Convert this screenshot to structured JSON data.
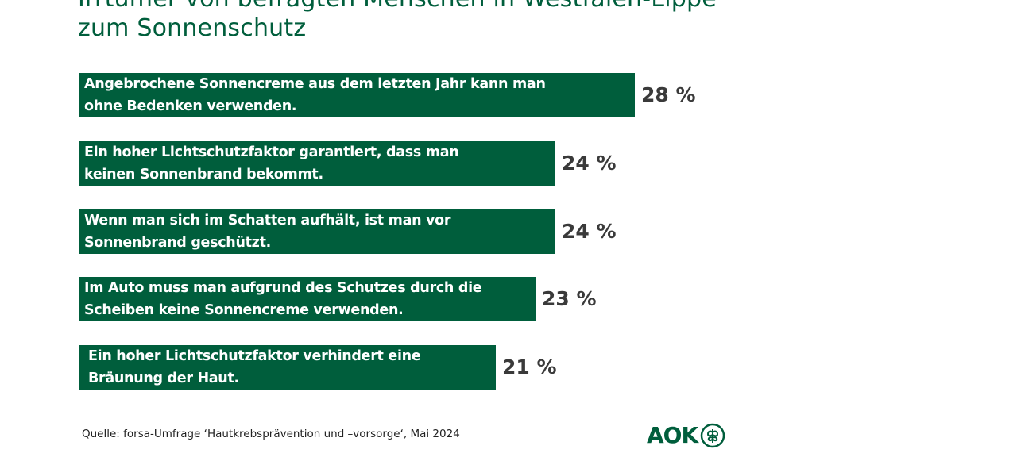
{
  "chart_data": {
    "type": "bar",
    "orientation": "horizontal",
    "title": "Irrtümer von befragten Menschen in Westfalen-Lippe zum Sonnenschutz",
    "categories": [
      "Angebrochene Sonnencreme aus dem letzten Jahr kann man ohne Bedenken verwenden.",
      "Ein hoher Lichtschutzfaktor garantiert, dass man keinen Sonnenbrand bekommt.",
      "Wenn man sich im Schatten aufhält, ist man vor Sonnenbrand geschützt.",
      "Im Auto muss man aufgrund des Schutzes durch die Scheiben keine Sonnencreme verwenden.",
      "Ein hoher Lichtschutzfaktor verhindert eine Bräunung der Haut."
    ],
    "label_lines": [
      [
        "Angebrochene Sonnencreme aus dem letzten Jahr kann man",
        "ohne Bedenken verwenden."
      ],
      [
        "Ein hoher Lichtschutzfaktor garantiert, dass man",
        "keinen Sonnenbrand bekommt."
      ],
      [
        "Wenn man sich im Schatten aufhält, ist man vor",
        "Sonnenbrand geschützt."
      ],
      [
        "Im Auto muss man aufgrund des Schutzes durch die",
        "Scheiben keine Sonnencreme verwenden."
      ],
      [
        "Ein hoher Lichtschutzfaktor verhindert eine",
        "Bräunung der Haut."
      ]
    ],
    "values": [
      28,
      24,
      24,
      23,
      21
    ],
    "value_labels": [
      "28 %",
      "24 %",
      "24 %",
      "23 %",
      "21 %"
    ],
    "unit": "%",
    "grid": false,
    "bar_color": "#005e3c"
  },
  "source": "Quelle: forsa-Umfrage ‘Hautkrebsprävention und –vorsorge‘, Mai 2024",
  "logo": {
    "text": "AOK",
    "icon": "aok-tree-logo-icon",
    "color": "#005e3c"
  }
}
